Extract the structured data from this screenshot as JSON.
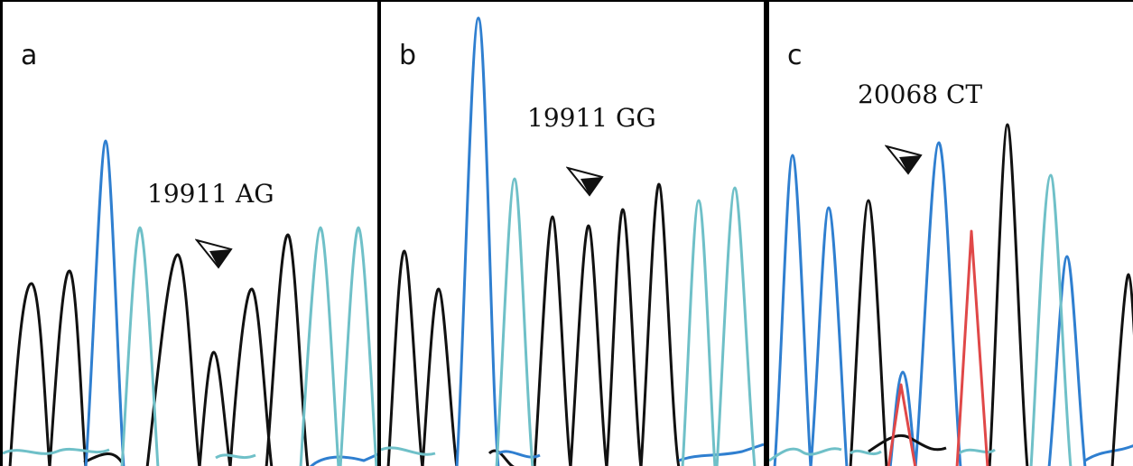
{
  "panels": [
    {
      "id": "a",
      "letter": "a",
      "label": "19911 AG"
    },
    {
      "id": "b",
      "letter": "b",
      "label": "19911 GG"
    },
    {
      "id": "c",
      "letter": "c",
      "label": "20068 CT"
    }
  ],
  "colors": {
    "blue": "#2f7fd0",
    "teal": "#6fc0c8",
    "black": "#111111",
    "red": "#e04848",
    "border": "#000000"
  },
  "icons": {
    "arrowhead": "arrowhead-marker-icon"
  }
}
